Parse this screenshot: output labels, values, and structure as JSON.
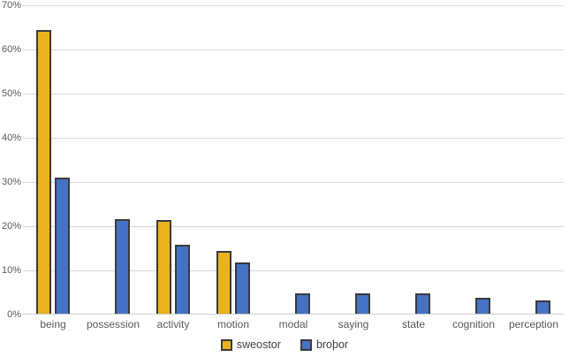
{
  "chart_data": {
    "type": "bar",
    "title": "",
    "xlabel": "",
    "ylabel": "",
    "categories": [
      "being",
      "possession",
      "activity",
      "motion",
      "modal",
      "saying",
      "state",
      "cognition",
      "perception"
    ],
    "series": [
      {
        "name": "sweostor",
        "slug": "sweostor",
        "color": "#e9b320",
        "values": [
          64.5,
          null,
          21.5,
          14.5,
          null,
          null,
          null,
          null,
          null
        ]
      },
      {
        "name": "broþor",
        "slug": "brothor",
        "color": "#4472c4",
        "values": [
          31.0,
          21.7,
          15.9,
          11.9,
          4.9,
          4.9,
          4.9,
          3.8,
          3.3
        ]
      }
    ],
    "ylim": [
      0,
      70
    ],
    "y_tick_step": 10,
    "y_tick_labels": [
      "0%",
      "10%",
      "20%",
      "30%",
      "40%",
      "50%",
      "60%",
      "70%"
    ],
    "grid": "horizontal",
    "legend_position": "bottom",
    "bar_border_color": "#3b3b3b",
    "gridline_color": "#d9d9d9",
    "axis_line_color": "#cfcfcf",
    "tick_text_color": "#595959",
    "legend_text_color": "#404040",
    "background_color": "#ffffff"
  }
}
